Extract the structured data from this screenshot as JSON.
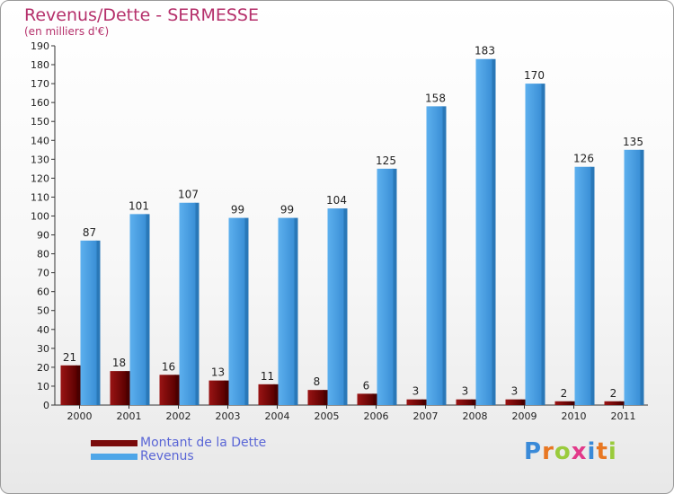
{
  "chart_data": {
    "type": "bar",
    "title": "Revenus/Dette - SERMESSE",
    "subtitle": "(en milliers d'€)",
    "categories": [
      "2000",
      "2001",
      "2002",
      "2003",
      "2004",
      "2005",
      "2006",
      "2007",
      "2008",
      "2009",
      "2010",
      "2011"
    ],
    "series": [
      {
        "name": "Montant de la Dette",
        "color": "#7a0a0a",
        "values": [
          21,
          18,
          16,
          13,
          11,
          8,
          6,
          3,
          3,
          3,
          2,
          2
        ]
      },
      {
        "name": "Revenus",
        "color": "#4ea6e8",
        "values": [
          87,
          101,
          107,
          99,
          99,
          104,
          125,
          158,
          183,
          170,
          126,
          135
        ]
      }
    ],
    "ylim": [
      0,
      190
    ],
    "yticks": [
      0,
      10,
      20,
      30,
      40,
      50,
      60,
      70,
      80,
      90,
      100,
      110,
      120,
      130,
      140,
      150,
      160,
      170,
      180,
      190
    ],
    "grid": false,
    "legend_position": "bottom-left",
    "data_labels": true
  },
  "logo": {
    "text": "Proxiti",
    "colors": [
      "#3a8ad8",
      "#e87722",
      "#9acb3c",
      "#e23a8a",
      "#3a8ad8",
      "#e87722",
      "#9acb3c"
    ]
  }
}
